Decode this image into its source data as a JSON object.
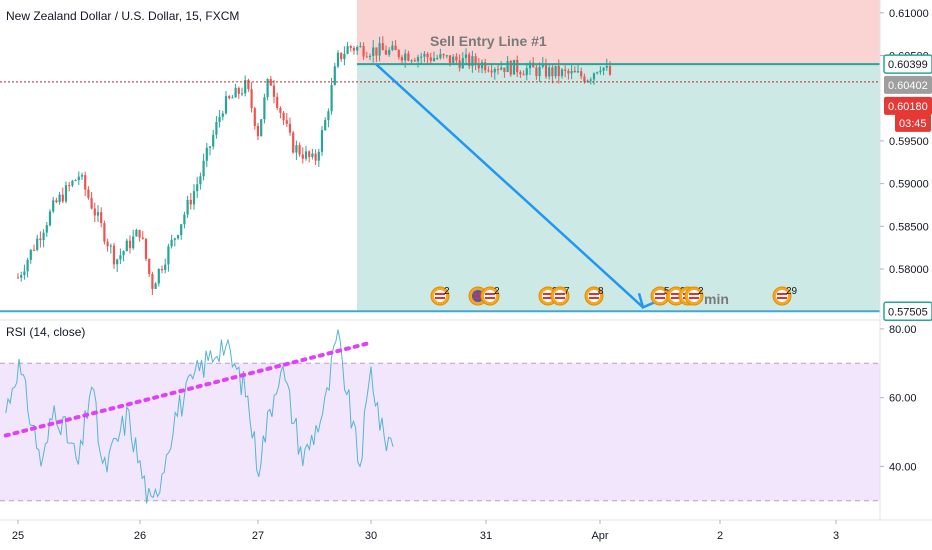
{
  "symbol_title": "New Zealand Dollar / U.S. Dollar, 15, FXCM",
  "rsi_label": "RSI (14, close)",
  "annotation": "Sell Entry Line #1",
  "annotation_partial": "min",
  "price_badges": [
    {
      "label": "0.60399",
      "style": "outline"
    },
    {
      "label": "0.60402",
      "style": "gray"
    },
    {
      "label": "0.60180",
      "style": "red"
    },
    {
      "label": "03:45",
      "style": "red"
    },
    {
      "label": "0.57505",
      "style": "outline"
    }
  ],
  "colors": {
    "bull": "#26a69a",
    "bear": "#ef5350",
    "target_zone": "#cce9e5",
    "stop_zone": "#fad4d2",
    "arrow": "#2196f3",
    "rsi_line": "#56b4d3",
    "rsi_band": "#f1e6fb",
    "trendline": "#e040fb",
    "current_price_line": "#c62828",
    "entry_line": "#26a69a"
  },
  "events": [
    {
      "label": "2",
      "icon": "us-flag-icon"
    },
    {
      "label": "",
      "icon": "event-icon"
    },
    {
      "label": "2",
      "icon": "us-flag-icon"
    },
    {
      "label": "2",
      "icon": "us-flag-icon"
    },
    {
      "label": "7",
      "icon": "us-flag-icon"
    },
    {
      "label": "8",
      "icon": "us-flag-icon"
    },
    {
      "label": "5",
      "icon": "us-flag-icon"
    },
    {
      "label": "2",
      "icon": "us-flag-icon"
    },
    {
      "label": "1",
      "icon": "us-flag-icon"
    },
    {
      "label": "2",
      "icon": "us-flag-icon"
    },
    {
      "label": "29",
      "icon": "us-flag-icon"
    }
  ],
  "chart_data": [
    {
      "type": "candlestick",
      "title": "New Zealand Dollar / U.S. Dollar, 15, FXCM",
      "x_ticks": [
        "25",
        "26",
        "27",
        "30",
        "31",
        "Apr",
        "2",
        "3"
      ],
      "y_ticks": [
        "0.61000",
        "0.60500",
        "0.59500",
        "0.59000",
        "0.58500",
        "0.58000"
      ],
      "ylim": [
        0.5745,
        0.6115
      ],
      "anchor_points": [
        {
          "x": "25",
          "price": 0.579
        },
        {
          "x": "25.3",
          "price": 0.5875
        },
        {
          "x": "25.5",
          "price": 0.591
        },
        {
          "x": "25.8",
          "price": 0.581
        },
        {
          "x": "26",
          "price": 0.5845
        },
        {
          "x": "26.1",
          "price": 0.578
        },
        {
          "x": "26.3",
          "price": 0.584
        },
        {
          "x": "26.5",
          "price": 0.5905
        },
        {
          "x": "26.7",
          "price": 0.599
        },
        {
          "x": "26.9",
          "price": 0.6015
        },
        {
          "x": "27",
          "price": 0.596
        },
        {
          "x": "27.1",
          "price": 0.6025
        },
        {
          "x": "27.3",
          "price": 0.5945
        },
        {
          "x": "27.5",
          "price": 0.5925
        },
        {
          "x": "27.6",
          "price": 0.5975
        },
        {
          "x": "27.7",
          "price": 0.6045
        },
        {
          "x": "27.8",
          "price": 0.606
        },
        {
          "x": "29.9",
          "price": 0.6025
        },
        {
          "x": "30",
          "price": 0.604
        },
        {
          "x": "30.1",
          "price": 0.6025
        }
      ],
      "lines": {
        "entry_price": 0.60399,
        "last_price": 0.60402,
        "target_price": 0.57505
      },
      "position": {
        "type": "short",
        "entry": 0.60399,
        "stop": 0.6115,
        "target": 0.57505
      }
    },
    {
      "type": "line",
      "title": "RSI (14, close)",
      "y_ticks": [
        "80.00",
        "60.00",
        "40.00"
      ],
      "ylim": [
        25,
        82
      ],
      "band": [
        30,
        70
      ],
      "anchor_points": [
        {
          "x": "24.9",
          "value": 56
        },
        {
          "x": "25",
          "value": 70
        },
        {
          "x": "25.2",
          "value": 40
        },
        {
          "x": "25.3",
          "value": 58
        },
        {
          "x": "25.5",
          "value": 40
        },
        {
          "x": "25.6",
          "value": 65
        },
        {
          "x": "25.7",
          "value": 38
        },
        {
          "x": "25.9",
          "value": 55
        },
        {
          "x": "26",
          "value": 40
        },
        {
          "x": "26.1",
          "value": 27
        },
        {
          "x": "26.3",
          "value": 55
        },
        {
          "x": "26.5",
          "value": 68
        },
        {
          "x": "26.7",
          "value": 76
        },
        {
          "x": "26.9",
          "value": 62
        },
        {
          "x": "27",
          "value": 40
        },
        {
          "x": "27.2",
          "value": 70
        },
        {
          "x": "27.4",
          "value": 42
        },
        {
          "x": "27.6",
          "value": 58
        },
        {
          "x": "27.7",
          "value": 78
        },
        {
          "x": "27.9",
          "value": 40
        },
        {
          "x": "28",
          "value": 68
        },
        {
          "x": "28.1",
          "value": 49
        },
        {
          "x": "28.2",
          "value": 47
        }
      ],
      "trendline": {
        "from": {
          "x": "24.9",
          "value": 49
        },
        "to": {
          "x": "28",
          "value": 76
        }
      }
    }
  ]
}
